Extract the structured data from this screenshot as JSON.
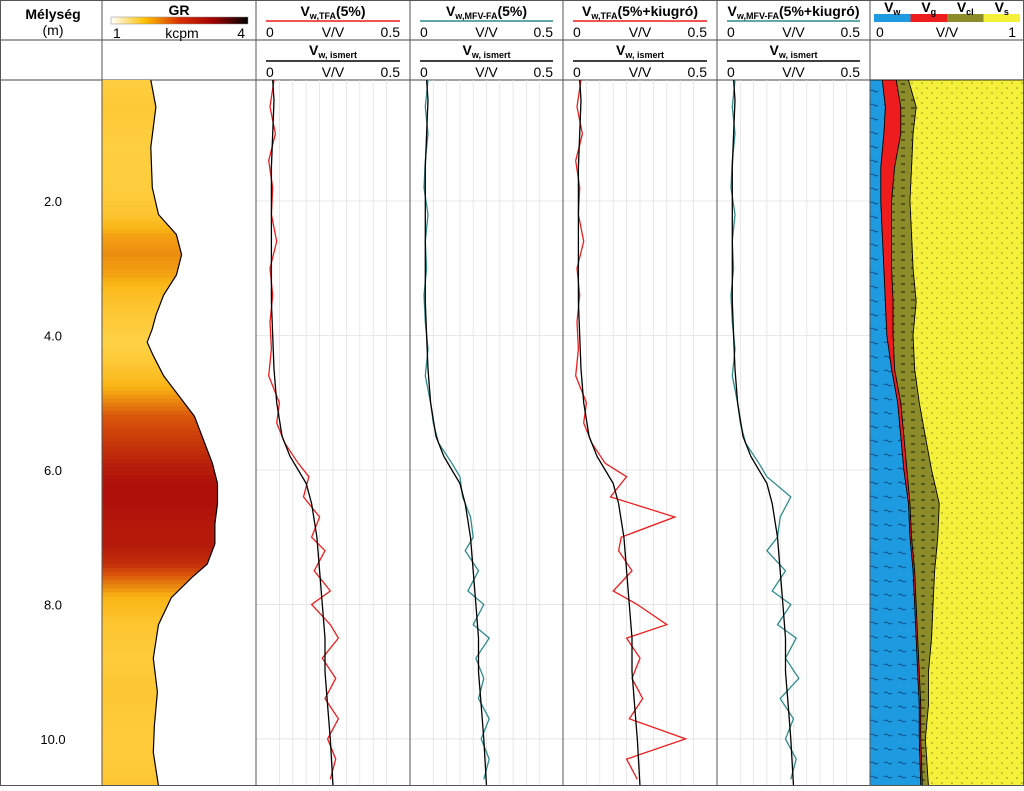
{
  "chart_data": {
    "type": "line",
    "depth_axis": {
      "title": "Mélység",
      "unit": "(m)",
      "ticks": [
        "2.0",
        "4.0",
        "6.0",
        "8.0",
        "10.0"
      ],
      "tick_values": [
        2,
        4,
        6,
        8,
        10
      ],
      "range": [
        0.2,
        10.7
      ]
    },
    "gr_track": {
      "title": "GR",
      "scale_min": "1",
      "scale_unit": "kcpm",
      "scale_max": "4",
      "range": [
        1,
        4
      ],
      "color_bar": [
        "#ffffff",
        "#ffc000",
        "#d93000",
        "#a00000",
        "#000000"
      ],
      "depth": [
        0.2,
        0.6,
        1.2,
        1.8,
        2.2,
        2.5,
        2.8,
        3.1,
        3.4,
        3.7,
        3.9,
        4.1,
        4.3,
        4.6,
        4.9,
        5.2,
        5.6,
        5.9,
        6.2,
        6.5,
        6.8,
        7.1,
        7.4,
        7.6,
        7.9,
        8.3,
        8.8,
        9.3,
        9.8,
        10.2,
        10.7
      ],
      "values": [
        1.95,
        2.05,
        1.95,
        1.98,
        2.1,
        2.45,
        2.55,
        2.45,
        2.2,
        2.05,
        1.98,
        1.88,
        2.0,
        2.2,
        2.5,
        2.8,
        3.0,
        3.15,
        3.25,
        3.25,
        3.2,
        3.2,
        3.05,
        2.75,
        2.35,
        2.1,
        2.0,
        2.08,
        2.02,
        2.0,
        2.1
      ]
    },
    "tracks": [
      {
        "title": "V",
        "title_sub": "w,TFA",
        "title_suffix": "(5%)",
        "estimated_color": "#ee1c1c",
        "scale": [
          "0",
          "V/V",
          "0.5"
        ],
        "ref_title": "V",
        "ref_sub": "w, ismert",
        "ref_scale": [
          "0",
          "V/V",
          "0.5"
        ],
        "range": [
          0,
          0.5
        ]
      },
      {
        "title": "V",
        "title_sub": "w,MFV-FA",
        "title_suffix": "(5%)",
        "estimated_color": "#2e8b8b",
        "scale": [
          "0",
          "V/V",
          "0.5"
        ],
        "ref_title": "V",
        "ref_sub": "w, ismert",
        "ref_scale": [
          "0",
          "V/V",
          "0.5"
        ],
        "range": [
          0,
          0.5
        ]
      },
      {
        "title": "V",
        "title_sub": "w,TFA",
        "title_suffix": "(5%+kiugró)",
        "estimated_color": "#ee1c1c",
        "scale": [
          "0",
          "V/V",
          "0.5"
        ],
        "ref_title": "V",
        "ref_sub": "w, ismert",
        "ref_scale": [
          "0",
          "V/V",
          "0.5"
        ],
        "range": [
          0,
          0.5
        ]
      },
      {
        "title": "V",
        "title_sub": "w,MFV-FA",
        "title_suffix": "(5%+kiugró)",
        "estimated_color": "#2e8b8b",
        "scale": [
          "0",
          "V/V",
          "0.5"
        ],
        "ref_title": "V",
        "ref_sub": "w, ismert",
        "ref_scale": [
          "0",
          "V/V",
          "0.5"
        ],
        "range": [
          0,
          0.5
        ]
      }
    ],
    "known_vw": {
      "depth": [
        0.2,
        0.5,
        1.0,
        1.5,
        2.0,
        2.5,
        3.0,
        3.5,
        4.0,
        4.5,
        5.0,
        5.5,
        5.8,
        6.0,
        6.2,
        6.5,
        7.0,
        7.5,
        8.0,
        8.5,
        9.0,
        9.5,
        10.0,
        10.7
      ],
      "values": [
        0.025,
        0.03,
        0.025,
        0.02,
        0.02,
        0.02,
        0.02,
        0.02,
        0.025,
        0.03,
        0.04,
        0.06,
        0.09,
        0.12,
        0.15,
        0.17,
        0.19,
        0.2,
        0.21,
        0.22,
        0.22,
        0.23,
        0.24,
        0.25
      ]
    },
    "estimated_vw": {
      "depth": [
        0.2,
        0.6,
        1.0,
        1.4,
        1.8,
        2.2,
        2.6,
        3.0,
        3.4,
        3.8,
        4.2,
        4.6,
        5.0,
        5.3,
        5.6,
        5.9,
        6.1,
        6.4,
        6.7,
        7.0,
        7.2,
        7.5,
        7.8,
        8.0,
        8.3,
        8.5,
        8.8,
        9.1,
        9.4,
        9.7,
        10.0,
        10.3,
        10.6
      ],
      "track1": [
        0.03,
        0.015,
        0.035,
        0.01,
        0.025,
        0.02,
        0.04,
        0.015,
        0.025,
        0.015,
        0.02,
        0.01,
        0.05,
        0.04,
        0.07,
        0.12,
        0.16,
        0.14,
        0.2,
        0.17,
        0.22,
        0.18,
        0.24,
        0.17,
        0.24,
        0.27,
        0.21,
        0.26,
        0.22,
        0.27,
        0.23,
        0.26,
        0.24
      ],
      "track2": [
        0.03,
        0.02,
        0.03,
        0.02,
        0.015,
        0.03,
        0.02,
        0.025,
        0.015,
        0.02,
        0.03,
        0.02,
        0.04,
        0.05,
        0.07,
        0.12,
        0.15,
        0.16,
        0.19,
        0.2,
        0.17,
        0.22,
        0.18,
        0.24,
        0.2,
        0.26,
        0.21,
        0.24,
        0.22,
        0.26,
        0.23,
        0.26,
        0.24
      ],
      "track3": [
        0.03,
        0.015,
        0.035,
        0.01,
        0.025,
        0.02,
        0.04,
        0.015,
        0.025,
        0.015,
        0.02,
        0.01,
        0.05,
        0.04,
        0.07,
        0.12,
        0.2,
        0.14,
        0.38,
        0.18,
        0.17,
        0.22,
        0.15,
        0.24,
        0.35,
        0.2,
        0.25,
        0.22,
        0.26,
        0.21,
        0.42,
        0.2,
        0.24
      ],
      "track4": [
        0.03,
        0.02,
        0.03,
        0.02,
        0.015,
        0.03,
        0.02,
        0.025,
        0.015,
        0.02,
        0.03,
        0.02,
        0.04,
        0.05,
        0.07,
        0.12,
        0.15,
        0.24,
        0.2,
        0.19,
        0.15,
        0.22,
        0.17,
        0.24,
        0.19,
        0.26,
        0.22,
        0.27,
        0.2,
        0.25,
        0.22,
        0.26,
        0.24
      ]
    },
    "lithology_track": {
      "legend": [
        {
          "label": "V",
          "sub": "w",
          "color": "#1e9be0"
        },
        {
          "label": "V",
          "sub": "g",
          "color": "#ee1c1c"
        },
        {
          "label": "V",
          "sub": "cl",
          "color": "#8c8c2a"
        },
        {
          "label": "V",
          "sub": "s",
          "color": "#f5f03a"
        }
      ],
      "scale": [
        "0",
        "V/V",
        "1"
      ],
      "range": [
        0,
        1
      ],
      "depth": [
        0.2,
        0.6,
        1.0,
        1.5,
        2.0,
        2.5,
        3.0,
        3.5,
        4.0,
        4.5,
        5.0,
        5.5,
        6.0,
        6.5,
        7.0,
        7.5,
        8.0,
        8.5,
        9.0,
        9.5,
        10.0,
        10.7
      ],
      "vw": [
        0.08,
        0.1,
        0.09,
        0.07,
        0.07,
        0.08,
        0.09,
        0.1,
        0.11,
        0.14,
        0.18,
        0.2,
        0.22,
        0.25,
        0.26,
        0.28,
        0.29,
        0.3,
        0.31,
        0.32,
        0.32,
        0.33
      ],
      "vw_vg": [
        0.17,
        0.2,
        0.2,
        0.16,
        0.14,
        0.14,
        0.14,
        0.15,
        0.15,
        0.16,
        0.2,
        0.22,
        0.24,
        0.26,
        0.27,
        0.29,
        0.3,
        0.31,
        0.32,
        0.33,
        0.33,
        0.34
      ],
      "vw_vg_vcl": [
        0.25,
        0.3,
        0.28,
        0.27,
        0.26,
        0.27,
        0.28,
        0.3,
        0.28,
        0.29,
        0.32,
        0.36,
        0.4,
        0.45,
        0.44,
        0.42,
        0.41,
        0.4,
        0.38,
        0.38,
        0.36,
        0.38
      ]
    },
    "grid": true
  }
}
